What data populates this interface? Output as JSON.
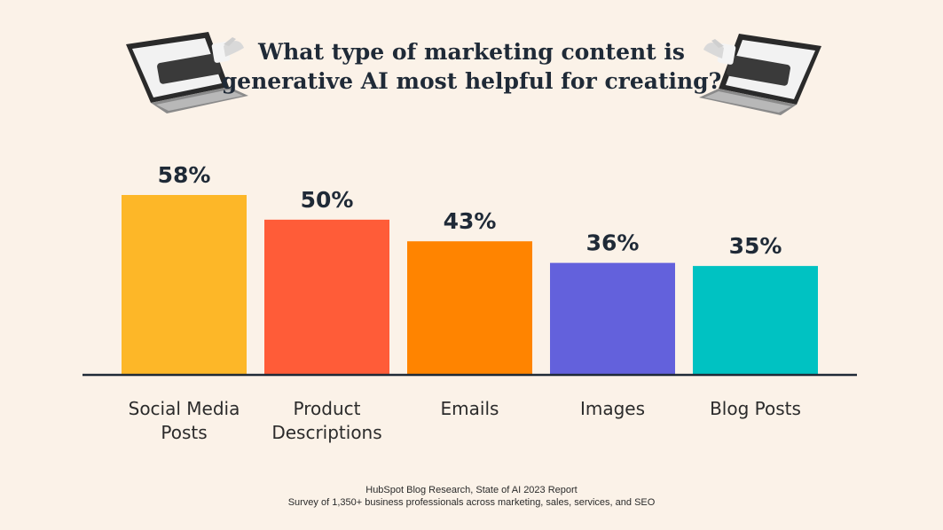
{
  "header": {
    "title_line1": "What type of marketing content is",
    "title_line2": "generative AI most helpful for creating?"
  },
  "chart_data": {
    "type": "bar",
    "title": "What type of marketing content is generative AI most helpful for creating?",
    "categories": [
      "Social Media Posts",
      "Product Descriptions",
      "Emails",
      "Images",
      "Blog Posts"
    ],
    "category_lines": [
      [
        "Social Media",
        "Posts"
      ],
      [
        "Product",
        "Descriptions"
      ],
      [
        "Emails"
      ],
      [
        "Images"
      ],
      [
        "Blog Posts"
      ]
    ],
    "values": [
      58,
      50,
      43,
      36,
      35
    ],
    "value_labels": [
      "58%",
      "50%",
      "43%",
      "36%",
      "35%"
    ],
    "colors": [
      "#fdb728",
      "#ff5c38",
      "#ff8400",
      "#6361dc",
      "#00c2c2"
    ],
    "ylim": [
      0,
      58
    ],
    "grid": false,
    "legend": "none"
  },
  "footer": {
    "source_line1": "HubSpot Blog Research, State of AI 2023 Report",
    "source_line2": "Survey of 1,350+ business professionals across marketing, sales, services, and SEO"
  },
  "icons": [
    "laptop-hand-left-icon",
    "laptop-hand-right-icon"
  ]
}
